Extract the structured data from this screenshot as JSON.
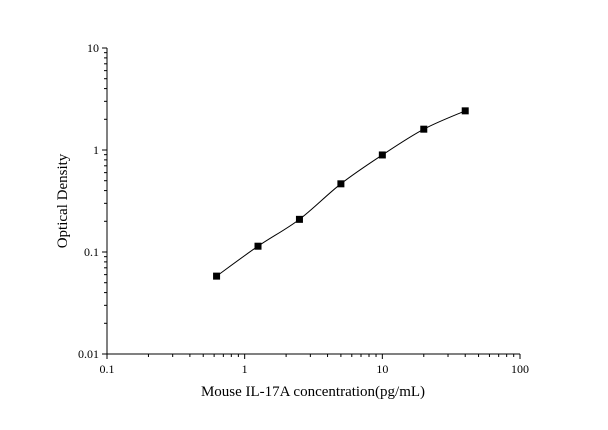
{
  "chart_data": {
    "type": "scatter",
    "title": "",
    "xlabel": "Mouse IL-17A concentration(pg/mL)",
    "ylabel": "Optical Density",
    "xscale": "log",
    "yscale": "log",
    "xlim": [
      0.1,
      100
    ],
    "ylim": [
      0.01,
      10
    ],
    "x_ticks": [
      {
        "value": 0.1,
        "label": "0.1"
      },
      {
        "value": 1,
        "label": "1"
      },
      {
        "value": 10,
        "label": "10"
      },
      {
        "value": 100,
        "label": "100"
      }
    ],
    "y_ticks": [
      {
        "value": 0.01,
        "label": "0.01"
      },
      {
        "value": 0.1,
        "label": "0.1"
      },
      {
        "value": 1,
        "label": "1"
      },
      {
        "value": 10,
        "label": "10"
      }
    ],
    "grid": false,
    "fit_curve": true,
    "series": [
      {
        "marker": "square",
        "color": "#000000",
        "points": [
          {
            "x": 0.625,
            "y": 0.058
          },
          {
            "x": 1.25,
            "y": 0.114
          },
          {
            "x": 2.5,
            "y": 0.209
          },
          {
            "x": 5,
            "y": 0.466
          },
          {
            "x": 10,
            "y": 0.894
          },
          {
            "x": 20,
            "y": 1.6
          },
          {
            "x": 40,
            "y": 2.42
          }
        ]
      }
    ]
  }
}
